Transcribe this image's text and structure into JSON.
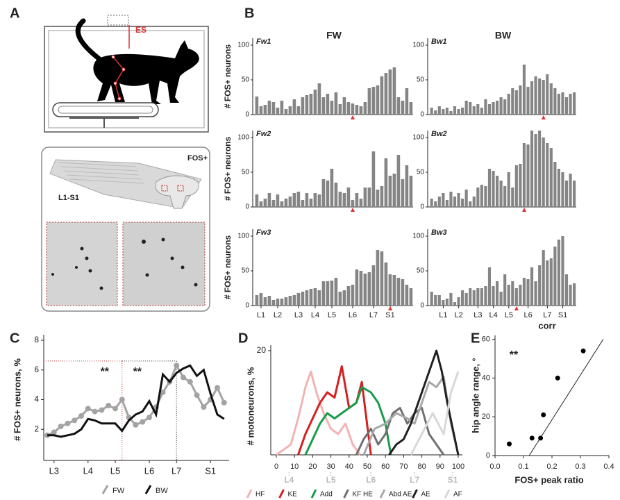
{
  "panel_letters": [
    "A",
    "B",
    "C",
    "D",
    "E"
  ],
  "panel_a": {
    "stimulation": "ES",
    "stain": "FOS+",
    "segments": "L1-S1"
  },
  "chart_data": [
    {
      "type": "bar",
      "name": "Fw1",
      "title": "FW",
      "y_label": "# FOS+ neurons",
      "color": "#858585",
      "ylim": [
        0,
        110
      ],
      "yticks": [
        0,
        50,
        100
      ],
      "marker_index": 23,
      "marker_color": "#e03131",
      "values": [
        26,
        12,
        14,
        20,
        18,
        10,
        20,
        8,
        12,
        22,
        12,
        25,
        28,
        30,
        36,
        45,
        25,
        30,
        20,
        32,
        15,
        25,
        18,
        16,
        14,
        12,
        18,
        38,
        40,
        42,
        55,
        60,
        65,
        68,
        25,
        20,
        38,
        18
      ]
    },
    {
      "type": "bar",
      "name": "Bw1",
      "title": "BW",
      "color": "#858585",
      "ylim": [
        0,
        110
      ],
      "yticks": [
        0,
        50,
        100
      ],
      "marker_index": 29,
      "marker_color": "#e03131",
      "values": [
        10,
        6,
        12,
        8,
        10,
        5,
        12,
        8,
        10,
        20,
        18,
        12,
        15,
        10,
        22,
        15,
        18,
        20,
        25,
        22,
        30,
        38,
        35,
        42,
        72,
        40,
        48,
        55,
        52,
        50,
        58,
        45,
        38,
        30,
        32,
        25,
        30,
        32
      ]
    },
    {
      "type": "bar",
      "name": "Fw2",
      "y_label": "# FOS+ neurons",
      "color": "#858585",
      "ylim": [
        0,
        110
      ],
      "yticks": [
        0,
        50,
        100
      ],
      "marker_index": 23,
      "marker_color": "#e03131",
      "values": [
        18,
        8,
        12,
        20,
        10,
        18,
        8,
        12,
        15,
        20,
        22,
        10,
        20,
        12,
        20,
        18,
        40,
        38,
        55,
        35,
        22,
        20,
        28,
        10,
        20,
        12,
        28,
        28,
        80,
        25,
        30,
        70,
        45,
        48,
        75,
        40,
        60,
        45
      ]
    },
    {
      "type": "bar",
      "name": "Bw2",
      "color": "#858585",
      "ylim": [
        0,
        110
      ],
      "yticks": [
        0,
        50,
        100
      ],
      "marker_index": 24,
      "marker_color": "#e03131",
      "values": [
        12,
        8,
        15,
        20,
        10,
        22,
        15,
        20,
        12,
        25,
        8,
        15,
        28,
        32,
        30,
        55,
        52,
        45,
        38,
        30,
        50,
        28,
        60,
        62,
        92,
        90,
        110,
        105,
        110,
        100,
        92,
        85,
        65,
        55,
        50,
        38,
        48,
        38
      ]
    },
    {
      "type": "bar",
      "name": "Fw3",
      "y_label": "# FOS+ neurons",
      "color": "#858585",
      "ylim": [
        0,
        110
      ],
      "yticks": [
        0,
        50,
        100
      ],
      "marker_index": 32,
      "marker_color": "#e03131",
      "categories": [
        null,
        "L1",
        null,
        null,
        null,
        "L2",
        null,
        null,
        null,
        null,
        "L3",
        null,
        null,
        null,
        "L4",
        null,
        null,
        null,
        "L5",
        null,
        null,
        null,
        null,
        "L6",
        null,
        null,
        null,
        null,
        "L7",
        null,
        null,
        null,
        "S1",
        null,
        null,
        null,
        null,
        null
      ],
      "values": [
        15,
        18,
        12,
        14,
        8,
        10,
        10,
        12,
        14,
        15,
        18,
        20,
        22,
        24,
        25,
        22,
        35,
        35,
        36,
        40,
        20,
        22,
        28,
        30,
        52,
        50,
        46,
        48,
        58,
        80,
        78,
        62,
        45,
        44,
        40,
        38,
        30,
        25
      ]
    },
    {
      "type": "bar",
      "name": "Bw3",
      "x_label": "corr",
      "color": "#858585",
      "ylim": [
        0,
        110
      ],
      "yticks": [
        0,
        50,
        100
      ],
      "marker_index": 22,
      "marker_color": "#e03131",
      "categories": [
        null,
        null,
        null,
        "L1",
        null,
        null,
        null,
        "L2",
        null,
        null,
        null,
        null,
        "L3",
        null,
        null,
        null,
        "L4",
        null,
        null,
        null,
        "L5",
        null,
        null,
        null,
        null,
        "L6",
        null,
        null,
        null,
        null,
        "L7",
        null,
        null,
        null,
        "S1",
        null,
        null,
        null
      ],
      "values": [
        20,
        15,
        15,
        8,
        10,
        18,
        5,
        12,
        22,
        18,
        25,
        22,
        25,
        25,
        28,
        55,
        28,
        35,
        20,
        45,
        30,
        35,
        25,
        30,
        40,
        38,
        55,
        35,
        58,
        80,
        65,
        68,
        85,
        95,
        100,
        45,
        30,
        32
      ]
    },
    {
      "type": "line",
      "y_label": "# FOS+ neurons, %",
      "ylim": [
        0,
        8
      ],
      "yticks": [
        2,
        4,
        6,
        8
      ],
      "categories": [
        null,
        "L3",
        null,
        null,
        null,
        null,
        "L4",
        null,
        null,
        null,
        "L5",
        null,
        null,
        null,
        null,
        "L6",
        null,
        null,
        null,
        "L7",
        null,
        null,
        null,
        null,
        "S1",
        null,
        null
      ],
      "reference_y": 6.6,
      "reference_x_index": [
        11,
        19
      ],
      "reference_colors": [
        "#c0392b",
        "#222222"
      ],
      "annotations": [
        "**",
        "**"
      ],
      "series": [
        {
          "name": "FW",
          "color": "#a3a3a3",
          "values": [
            1.6,
            1.8,
            2.2,
            2.4,
            2.6,
            2.9,
            3.4,
            3.2,
            3.3,
            3.6,
            3.4,
            4.0,
            2.8,
            2.3,
            2.5,
            2.8,
            3.5,
            4.5,
            5.2,
            6.3,
            5.5,
            5.2,
            4.3,
            3.5,
            4.0,
            4.8,
            3.8
          ]
        },
        {
          "name": "BW",
          "color": "#111111",
          "values": [
            1.6,
            1.6,
            1.5,
            1.6,
            1.7,
            2.0,
            2.7,
            2.6,
            2.4,
            2.4,
            2.4,
            1.9,
            2.6,
            3.0,
            3.2,
            3.9,
            3.0,
            5.7,
            5.2,
            5.8,
            6.1,
            6.3,
            5.6,
            6.0,
            4.4,
            3.0,
            2.7
          ]
        }
      ]
    },
    {
      "type": "line",
      "y_label": "# motoneurons, %",
      "xlim": [
        0,
        100
      ],
      "xticks": [
        0,
        10,
        20,
        30,
        40,
        50,
        60,
        70,
        80,
        90,
        100
      ],
      "ylim": [
        0,
        20
      ],
      "yticks": [
        20
      ],
      "segment_labels": [
        {
          "value": 7,
          "label": "L4"
        },
        {
          "value": 30,
          "label": "L5"
        },
        {
          "value": 52,
          "label": "L6"
        },
        {
          "value": 76,
          "label": "L7"
        },
        {
          "value": 97,
          "label": "S1"
        }
      ],
      "series": [
        {
          "name": "HF",
          "color": "#f2b3b3",
          "x": [
            0,
            4,
            8,
            12,
            16,
            19,
            22,
            26,
            30,
            34,
            38,
            42,
            46
          ],
          "values": [
            0,
            1,
            2,
            7,
            13,
            16,
            12,
            8,
            5,
            4,
            6,
            2,
            0
          ]
        },
        {
          "name": "KE",
          "color": "#d42020",
          "x": [
            12,
            16,
            20,
            24,
            28,
            32,
            36,
            40,
            44,
            47,
            52
          ],
          "values": [
            0,
            4,
            7,
            10,
            12,
            11,
            17,
            9,
            10,
            14,
            0
          ]
        },
        {
          "name": "Add",
          "color": "#1a9a4a",
          "x": [
            16,
            20,
            24,
            28,
            32,
            36,
            40,
            44,
            47,
            52,
            56,
            60,
            63
          ],
          "values": [
            0,
            3,
            6,
            8,
            7,
            8,
            9,
            10,
            13,
            12,
            10,
            6,
            0
          ]
        },
        {
          "name": "KF HE",
          "color": "#707070",
          "x": [
            44,
            48,
            52,
            56,
            60,
            64,
            68,
            72,
            76,
            80,
            84,
            88,
            92
          ],
          "values": [
            0,
            3,
            5,
            2,
            4,
            8,
            9,
            6,
            8,
            9,
            4,
            2,
            0
          ]
        },
        {
          "name": "Abd AE",
          "color": "#a8a8a8",
          "x": [
            48,
            54,
            60,
            66,
            72,
            76,
            80,
            84,
            88,
            92,
            96,
            100
          ],
          "values": [
            0,
            5,
            6,
            8,
            7,
            6,
            10,
            14,
            13,
            15,
            6,
            0
          ]
        },
        {
          "name": "AE",
          "color": "#202020",
          "x": [
            62,
            66,
            70,
            74,
            78,
            82,
            85,
            88,
            91,
            94,
            97,
            100
          ],
          "values": [
            0,
            2,
            3,
            6,
            10,
            14,
            17,
            20,
            16,
            10,
            5,
            0
          ]
        },
        {
          "name": "AF",
          "color": "#d8d8d8",
          "x": [
            74,
            80,
            86,
            92,
            96,
            100
          ],
          "values": [
            0,
            4,
            8,
            4,
            12,
            16
          ]
        }
      ]
    },
    {
      "type": "scatter",
      "x_label": "FOS+ peak ratio",
      "y_label": "hip angle range, °",
      "annotation": "**",
      "color": "#000000",
      "x": [
        0.05,
        0.13,
        0.16,
        0.17,
        0.22,
        0.31
      ],
      "values": [
        6,
        9,
        9,
        21,
        40,
        54
      ],
      "xlim": [
        0,
        0.4
      ],
      "xticks": [
        {
          "value": 0,
          "label": "0.0"
        },
        0.1,
        0.2,
        0.3,
        0.4
      ],
      "ylim": [
        0,
        62
      ],
      "yticks": [
        0,
        20,
        40,
        60
      ],
      "fit_line": {
        "x": [
          0.12,
          0.38
        ],
        "y": [
          0,
          60
        ]
      }
    }
  ]
}
